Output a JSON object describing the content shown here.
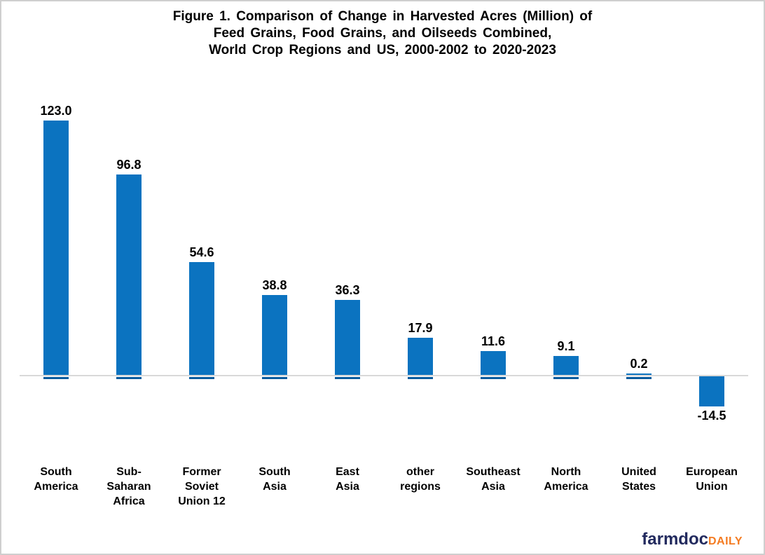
{
  "title": {
    "lines": [
      "Figure 1. Comparison of Change in Harvested Acres (Million) of",
      "Feed Grains, Food Grains, and Oilseeds Combined,",
      "World Crop Regions and US, 2000-2002 to 2020-2023"
    ]
  },
  "chart_data": {
    "type": "bar",
    "title": "Figure 1. Comparison of Change in Harvested Acres (Million) of Feed Grains, Food Grains, and Oilseeds Combined, World Crop Regions and US, 2000-2002 to 2020-2023",
    "categories": [
      "South America",
      "Sub-Saharan Africa",
      "Former Soviet Union 12",
      "South Asia",
      "East Asia",
      "other regions",
      "Southeast Asia",
      "North America",
      "United States",
      "European Union"
    ],
    "category_labels": [
      "South\nAmerica",
      "Sub-\nSaharan\nAfrica",
      "Former\nSoviet\nUnion 12",
      "South\nAsia",
      "East\nAsia",
      "other\nregions",
      "Southeast\nAsia",
      "North\nAmerica",
      "United\nStates",
      "European\nUnion"
    ],
    "values": [
      123.0,
      96.8,
      54.6,
      38.8,
      36.3,
      17.9,
      11.6,
      9.1,
      0.2,
      -14.5
    ],
    "value_labels": [
      "123.0",
      "96.8",
      "54.6",
      "38.8",
      "36.3",
      "17.9",
      "11.6",
      "9.1",
      "0.2",
      "-14.5"
    ],
    "xlabel": "",
    "ylabel": "",
    "ylim": [
      -25,
      140
    ],
    "grid": false,
    "legend": "none",
    "data_labels": true,
    "bar_color": "#0b73c0",
    "bar_shadow_color": "#085a9d",
    "axis_line_color": "#d9d9d9",
    "label_color": "#000000"
  },
  "footer": {
    "brand_primary": "farmdoc",
    "brand_secondary": "DAILY",
    "brand_primary_color": "#222a5e",
    "brand_secondary_color": "#f47b21"
  }
}
